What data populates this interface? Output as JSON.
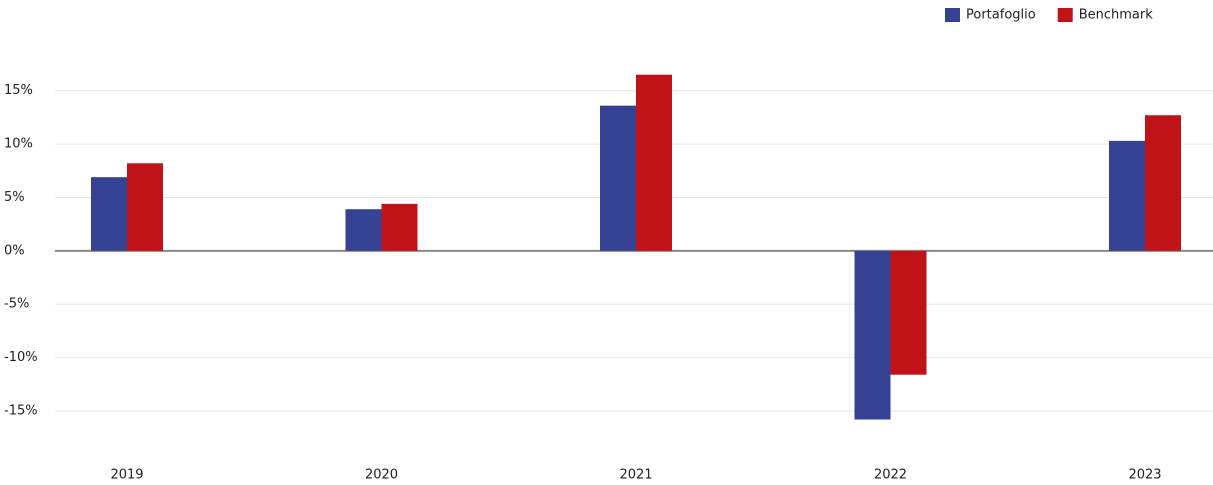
{
  "chart_data": {
    "type": "bar",
    "categories": [
      "2019",
      "2020",
      "2021",
      "2022",
      "2023"
    ],
    "series": [
      {
        "name": "Portafoglio",
        "color": "#354294",
        "values": [
          6.9,
          3.9,
          13.6,
          -15.8,
          10.3
        ]
      },
      {
        "name": "Benchmark",
        "color": "#c01318",
        "values": [
          8.2,
          4.4,
          16.5,
          -11.6,
          12.7
        ]
      }
    ],
    "ylim": [
      -18,
      19
    ],
    "yticks": [
      {
        "value": -15,
        "label": "-15%"
      },
      {
        "value": -10,
        "label": "-10%"
      },
      {
        "value": -5,
        "label": "-5%"
      },
      {
        "value": 0,
        "label": "0%"
      },
      {
        "value": 5,
        "label": "5%"
      },
      {
        "value": 10,
        "label": "10%"
      },
      {
        "value": 15,
        "label": "15%"
      }
    ],
    "grid": true,
    "legend": "top-right"
  }
}
